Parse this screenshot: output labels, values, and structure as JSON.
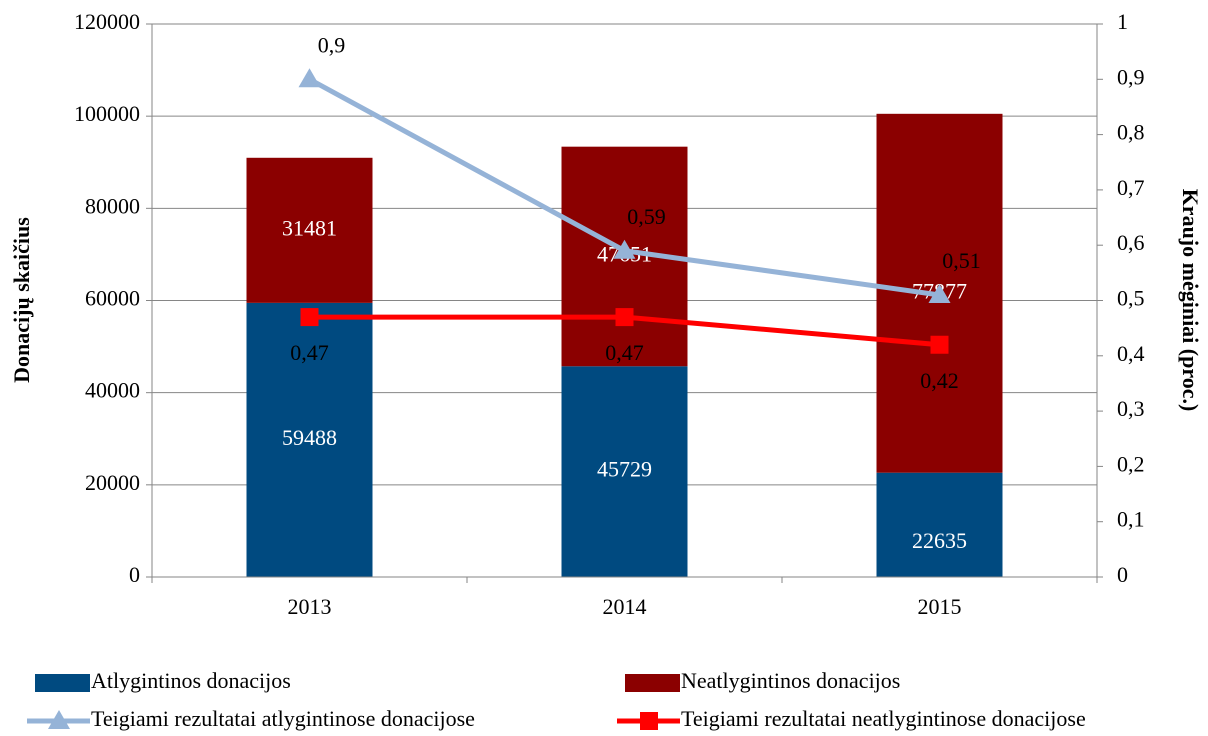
{
  "chart_data": {
    "type": "bar",
    "stacked": true,
    "categories": [
      "2013",
      "2014",
      "2015"
    ],
    "ylabel": "Donacijų skaičius",
    "y2label": "Kraujo mėginiai  (proc.)",
    "ylim": [
      0,
      120000
    ],
    "yticks": [
      0,
      20000,
      40000,
      60000,
      80000,
      100000,
      120000
    ],
    "y2lim": [
      0,
      1
    ],
    "y2ticks": [
      0,
      {
        "value": 0.1,
        "label": "0,1"
      },
      {
        "value": 0.2,
        "label": "0,2"
      },
      {
        "value": 0.3,
        "label": "0,3"
      },
      {
        "value": 0.4,
        "label": "0,4"
      },
      {
        "value": 0.5,
        "label": "0,5"
      },
      {
        "value": 0.6,
        "label": "0,6"
      },
      {
        "value": 0.7,
        "label": "0,7"
      },
      {
        "value": 0.8,
        "label": "0,8"
      },
      {
        "value": 0.9,
        "label": "0,9"
      },
      1
    ],
    "grid": true,
    "legend": "bottom",
    "series": [
      {
        "name": "Atlygintinos donacijos",
        "type": "bar",
        "color": "#004a80",
        "values": [
          59488,
          45729,
          22635
        ]
      },
      {
        "name": "Neatlygintinos donacijos",
        "type": "bar",
        "color": "#8b0000",
        "values": [
          31481,
          47651,
          77877
        ]
      },
      {
        "name": "Teigiami rezultatai atlygintinose donacijose",
        "type": "line",
        "axis": "y2",
        "marker": "triangle",
        "color": "#95b3d7",
        "values": [
          0.9,
          0.59,
          0.51
        ],
        "value_labels": [
          "0,9",
          "0,59",
          "0,51"
        ]
      },
      {
        "name": "Teigiami rezultatai neatlygintinose donacijose",
        "type": "line",
        "axis": "y2",
        "marker": "square",
        "color": "#ff0000",
        "values": [
          0.47,
          0.47,
          0.42
        ],
        "value_labels": [
          "0,47",
          "0,47",
          "0,42"
        ]
      }
    ]
  }
}
